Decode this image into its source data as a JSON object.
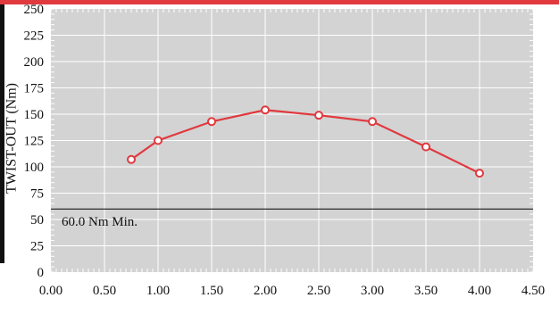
{
  "chart_data": {
    "type": "line",
    "title": "",
    "xlabel": "",
    "ylabel": "TWIST-OUT (Nm)",
    "xlim": [
      0,
      4.5
    ],
    "ylim": [
      0,
      250
    ],
    "x_ticks": [
      "0.00",
      "0.50",
      "1.00",
      "1.50",
      "2.00",
      "2.50",
      "3.00",
      "3.50",
      "4.00",
      "4.50"
    ],
    "y_ticks": [
      "0",
      "25",
      "50",
      "75",
      "100",
      "125",
      "150",
      "175",
      "200",
      "225",
      "250"
    ],
    "grid": true,
    "series": [
      {
        "x": [
          0.75,
          1.0,
          1.5,
          2.0,
          2.5,
          3.0,
          3.5,
          4.0
        ],
        "y": [
          107,
          125,
          143,
          154,
          149,
          143,
          119,
          94
        ]
      }
    ],
    "reference_line": {
      "y": 60,
      "label": "60.0 Nm Min."
    },
    "colors": {
      "series": "#e0393e",
      "plot_background": "#d3d3d3",
      "grid": "#ffffff",
      "top_bar": "#e0393e"
    }
  }
}
